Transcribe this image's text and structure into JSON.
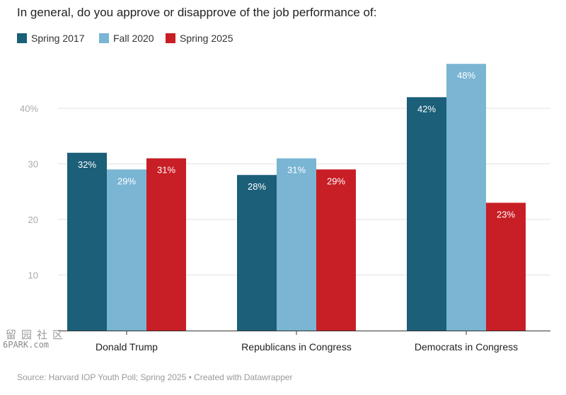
{
  "title": "In general, do you approve or disapprove of the job performance of:",
  "legend": [
    {
      "label": "Spring 2017",
      "color": "#1b5f78"
    },
    {
      "label": "Fall 2020",
      "color": "#7ab5d3"
    },
    {
      "label": "Spring 2025",
      "color": "#c81e25"
    }
  ],
  "chart_data": {
    "type": "bar",
    "categories": [
      "Donald Trump",
      "Republicans in Congress",
      "Democrats in Congress"
    ],
    "series": [
      {
        "name": "Spring 2017",
        "values": [
          32,
          28,
          42
        ],
        "color": "#1b5f78"
      },
      {
        "name": "Fall 2020",
        "values": [
          29,
          31,
          48
        ],
        "color": "#7ab5d3"
      },
      {
        "name": "Spring 2025",
        "values": [
          31,
          29,
          23
        ],
        "color": "#c81e25"
      }
    ],
    "y_ticks": [
      10,
      20,
      30,
      40
    ],
    "y_tick_labels": [
      "10",
      "20",
      "30",
      "40%"
    ],
    "ylim": [
      0,
      50
    ],
    "grid": true,
    "legend_position": "top-left",
    "value_suffix": "%"
  },
  "source": "Source: Harvard IOP Youth Poll; Spring 2025 • Created with Datawrapper",
  "watermark": {
    "chars": "留园社区",
    "text": "6PARK.com"
  }
}
